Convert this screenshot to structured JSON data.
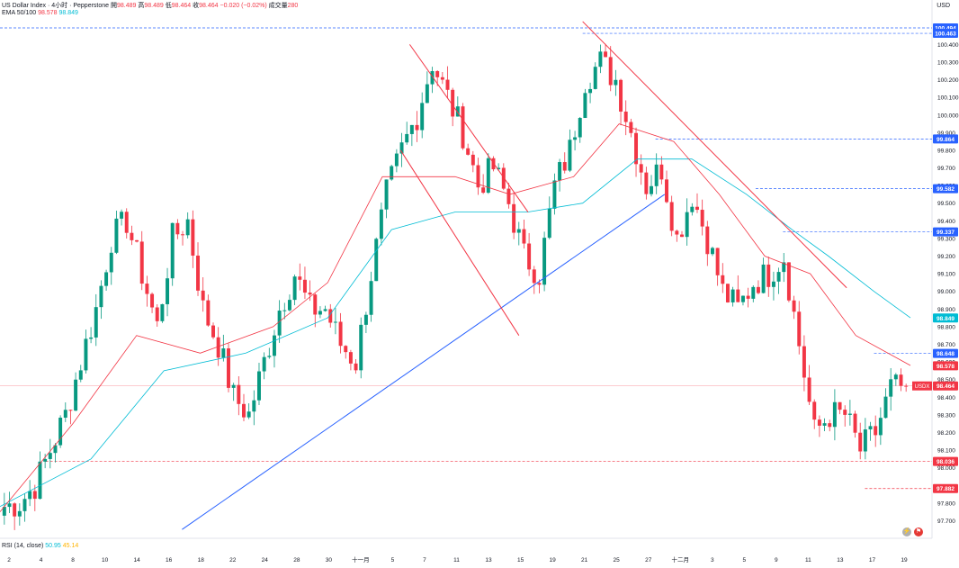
{
  "header": {
    "symbol": "US Dollar Index · 4小时 · Pepperstone",
    "open_label": "開",
    "open": "98.489",
    "high_label": "高",
    "high": "98.489",
    "low_label": "低",
    "low": "98.464",
    "close_label": "收",
    "close": "98.464",
    "change": "−0.020 (−0.02%)",
    "volume_label": "成交量",
    "volume": "280",
    "ema_label": "EMA 50/100",
    "ema50": "98.578",
    "ema100": "98.849",
    "currency": "USD"
  },
  "rsi": {
    "label": "RSI (14, close)",
    "v1": "50.95",
    "v2": "45.14"
  },
  "colors": {
    "up": "#089981",
    "down": "#f23645",
    "ema50": "#f23645",
    "ema100": "#00bcd4",
    "trend": "#2962ff",
    "blue_label": "#2962ff",
    "red_label": "#f23645"
  },
  "chart_data": {
    "type": "candlestick",
    "y_axis": {
      "min": 97.6,
      "max": 100.55
    },
    "y_ticks": [
      "97.700",
      "97.800",
      "98.000",
      "98.100",
      "98.200",
      "98.300",
      "98.400",
      "98.500",
      "98.600",
      "98.700",
      "98.800",
      "98.900",
      "99.000",
      "99.100",
      "99.200",
      "99.300",
      "99.400",
      "99.500",
      "99.600",
      "99.700",
      "99.800",
      "99.900",
      "100.000",
      "100.100",
      "100.200",
      "100.300",
      "100.400"
    ],
    "x_ticks": [
      "2",
      "4",
      "8",
      "10",
      "14",
      "16",
      "18",
      "22",
      "24",
      "28",
      "30",
      "十一月",
      "5",
      "7",
      "11",
      "13",
      "15",
      "19",
      "21",
      "25",
      "27",
      "十二月",
      "3",
      "5",
      "9",
      "11",
      "13",
      "17",
      "19"
    ],
    "price_labels": [
      {
        "value": 100.494,
        "text": "100.494",
        "style": "blue"
      },
      {
        "value": 100.463,
        "text": "100.463",
        "style": "blue"
      },
      {
        "value": 99.864,
        "text": "99.864",
        "style": "blue"
      },
      {
        "value": 99.582,
        "text": "99.582",
        "style": "blue"
      },
      {
        "value": 99.337,
        "text": "99.337",
        "style": "blue"
      },
      {
        "value": 98.849,
        "text": "98.849",
        "style": "cyan"
      },
      {
        "value": 98.648,
        "text": "98.648",
        "style": "blue"
      },
      {
        "value": 98.578,
        "text": "98.578",
        "style": "red"
      },
      {
        "value": 98.464,
        "text": "98.464",
        "style": "red",
        "tag": "USDX"
      },
      {
        "value": 98.036,
        "text": "98.036",
        "style": "red"
      },
      {
        "value": 97.882,
        "text": "97.882",
        "style": "red"
      }
    ],
    "key_closes": [
      97.78,
      97.8,
      97.9,
      98.1,
      98.3,
      98.6,
      98.9,
      99.3,
      99.4,
      99.1,
      98.8,
      99.3,
      99.4,
      98.9,
      98.7,
      98.4,
      98.3,
      98.6,
      98.9,
      99.1,
      98.9,
      98.9,
      98.7,
      98.6,
      99.1,
      99.55,
      99.8,
      100.0,
      100.3,
      100.1,
      99.9,
      99.6,
      99.7,
      99.5,
      99.2,
      99.1,
      99.6,
      99.8,
      100.2,
      100.3,
      100.2,
      99.9,
      99.6,
      99.7,
      99.3,
      99.55,
      99.3,
      99.0,
      98.9,
      99.05,
      99.1,
      99.2,
      98.7,
      98.2,
      98.3,
      98.3,
      98.1,
      98.2,
      98.45,
      98.46
    ],
    "ema50_points": [
      [
        0.0,
        97.75
      ],
      [
        0.08,
        98.25
      ],
      [
        0.15,
        98.75
      ],
      [
        0.22,
        98.65
      ],
      [
        0.3,
        98.8
      ],
      [
        0.36,
        99.05
      ],
      [
        0.42,
        99.65
      ],
      [
        0.5,
        99.65
      ],
      [
        0.56,
        99.55
      ],
      [
        0.63,
        99.65
      ],
      [
        0.68,
        99.95
      ],
      [
        0.74,
        99.85
      ],
      [
        0.79,
        99.55
      ],
      [
        0.84,
        99.2
      ],
      [
        0.89,
        99.1
      ],
      [
        0.94,
        98.75
      ],
      [
        1.0,
        98.58
      ]
    ],
    "ema100_points": [
      [
        0.0,
        97.78
      ],
      [
        0.1,
        98.05
      ],
      [
        0.18,
        98.55
      ],
      [
        0.27,
        98.65
      ],
      [
        0.36,
        98.85
      ],
      [
        0.43,
        99.35
      ],
      [
        0.5,
        99.45
      ],
      [
        0.58,
        99.45
      ],
      [
        0.64,
        99.5
      ],
      [
        0.7,
        99.75
      ],
      [
        0.76,
        99.75
      ],
      [
        0.82,
        99.55
      ],
      [
        0.87,
        99.35
      ],
      [
        0.91,
        99.2
      ],
      [
        0.96,
        99.0
      ],
      [
        1.0,
        98.85
      ]
    ],
    "ema_end_values": {
      "ema50": 98.578,
      "ema100": 98.849
    },
    "trendlines": [
      {
        "from": [
          0.2,
          97.65
        ],
        "to": [
          0.73,
          99.55
        ],
        "color": "trend"
      },
      {
        "from": [
          0.45,
          100.4
        ],
        "to": [
          0.58,
          99.45
        ],
        "color": "down"
      },
      {
        "from": [
          0.44,
          99.8
        ],
        "to": [
          0.57,
          98.75
        ],
        "color": "down"
      },
      {
        "from": [
          0.64,
          100.53
        ],
        "to": [
          0.93,
          99.02
        ],
        "color": "down"
      }
    ],
    "dashed_levels": [
      {
        "value": 100.494,
        "from": 0.0
      },
      {
        "value": 100.463,
        "from": 0.64
      },
      {
        "value": 99.864,
        "from": 0.72
      },
      {
        "value": 99.582,
        "from": 0.83
      },
      {
        "value": 99.337,
        "from": 0.86
      },
      {
        "value": 98.648,
        "from": 0.96
      },
      {
        "value": 98.036,
        "from": 0.05
      },
      {
        "value": 97.882,
        "from": 0.95
      }
    ]
  }
}
